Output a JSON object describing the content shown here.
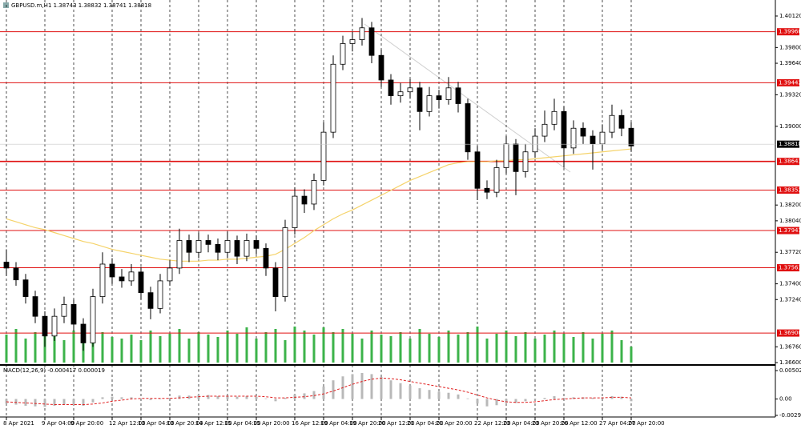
{
  "chart_data": {
    "type": "candlestick",
    "title": "GBPUSD.m,H1  1.38743 1.38832 1.38741 1.38818",
    "categories": [
      "8 Apr 2021",
      null,
      null,
      null,
      "9 Apr 04:00",
      null,
      null,
      "9 Apr 20:00",
      null,
      null,
      null,
      "12 Apr 12:00",
      null,
      null,
      "13 Apr 04:00",
      null,
      null,
      "13 Apr 20:00",
      null,
      null,
      "14 Apr 12:00",
      null,
      null,
      "15 Apr 04:00",
      null,
      null,
      "15 Apr 20:00",
      null,
      null,
      null,
      "16 Apr 12:00",
      null,
      null,
      "19 Apr 04:00",
      null,
      null,
      "19 Apr 20:00",
      null,
      null,
      "20 Apr 12:00",
      null,
      null,
      "21 Apr 04:00",
      null,
      null,
      "21 Apr 20:00",
      null,
      null,
      null,
      "22 Apr 12:00",
      null,
      null,
      "23 Apr 04:00",
      null,
      null,
      "23 Apr 20:00",
      null,
      null,
      "26 Apr 12:00",
      null,
      null,
      null,
      "27 Apr 04:00",
      null,
      null,
      "27 Apr 20:00"
    ],
    "candles": [
      [
        1.3762,
        1.3775,
        1.3748,
        1.3756
      ],
      [
        1.3756,
        1.3762,
        1.3738,
        1.3744
      ],
      [
        1.3744,
        1.375,
        1.372,
        1.3727
      ],
      [
        1.3727,
        1.3733,
        1.37,
        1.3707
      ],
      [
        1.3707,
        1.3712,
        1.3676,
        1.3687
      ],
      [
        1.3687,
        1.3715,
        1.3682,
        1.3707
      ],
      [
        1.3707,
        1.3727,
        1.37,
        1.3719
      ],
      [
        1.3719,
        1.3724,
        1.3692,
        1.3699
      ],
      [
        1.3699,
        1.3705,
        1.3672,
        1.368
      ],
      [
        1.368,
        1.3735,
        1.3676,
        1.3727
      ],
      [
        1.3727,
        1.3772,
        1.372,
        1.376
      ],
      [
        1.376,
        1.3766,
        1.374,
        1.3747
      ],
      [
        1.3747,
        1.3755,
        1.3736,
        1.3743
      ],
      [
        1.3743,
        1.376,
        1.3738,
        1.3752
      ],
      [
        1.3752,
        1.3757,
        1.3724,
        1.3731
      ],
      [
        1.3731,
        1.3737,
        1.3704,
        1.3715
      ],
      [
        1.3715,
        1.375,
        1.371,
        1.3743
      ],
      [
        1.3743,
        1.3764,
        1.3738,
        1.3756
      ],
      [
        1.3756,
        1.3796,
        1.375,
        1.3784
      ],
      [
        1.3784,
        1.379,
        1.3762,
        1.3772
      ],
      [
        1.3772,
        1.3792,
        1.3766,
        1.3784
      ],
      [
        1.3784,
        1.379,
        1.3772,
        1.378
      ],
      [
        1.378,
        1.3786,
        1.3764,
        1.3772
      ],
      [
        1.3772,
        1.3793,
        1.3766,
        1.3784
      ],
      [
        1.3784,
        1.3789,
        1.376,
        1.3768
      ],
      [
        1.3768,
        1.3791,
        1.3763,
        1.3784
      ],
      [
        1.3784,
        1.3789,
        1.377,
        1.3776
      ],
      [
        1.3776,
        1.3781,
        1.3748,
        1.3756
      ],
      [
        1.3756,
        1.3762,
        1.3712,
        1.3727
      ],
      [
        1.3727,
        1.3805,
        1.3722,
        1.3797
      ],
      [
        1.3797,
        1.3838,
        1.379,
        1.3829
      ],
      [
        1.3829,
        1.3836,
        1.3812,
        1.3821
      ],
      [
        1.3821,
        1.3852,
        1.3815,
        1.3845
      ],
      [
        1.3845,
        1.3904,
        1.384,
        1.3894
      ],
      [
        1.3894,
        1.3972,
        1.3888,
        1.3963
      ],
      [
        1.3963,
        1.3992,
        1.3957,
        1.3984
      ],
      [
        1.3984,
        1.3996,
        1.3976,
        1.3988
      ],
      [
        1.3988,
        1.401,
        1.3982,
        1.4
      ],
      [
        1.4,
        1.4006,
        1.3964,
        1.3972
      ],
      [
        1.3972,
        1.3978,
        1.394,
        1.3947
      ],
      [
        1.3947,
        1.3953,
        1.3922,
        1.3931
      ],
      [
        1.3931,
        1.3944,
        1.3924,
        1.3935
      ],
      [
        1.3935,
        1.3948,
        1.3928,
        1.3939
      ],
      [
        1.3939,
        1.3945,
        1.3896,
        1.3915
      ],
      [
        1.3915,
        1.394,
        1.391,
        1.3931
      ],
      [
        1.3931,
        1.3937,
        1.3918,
        1.3927
      ],
      [
        1.3927,
        1.395,
        1.3922,
        1.3939
      ],
      [
        1.3939,
        1.3945,
        1.3914,
        1.3923
      ],
      [
        1.3923,
        1.3928,
        1.3866,
        1.3874
      ],
      [
        1.3874,
        1.388,
        1.3825,
        1.3837
      ],
      [
        1.3837,
        1.3845,
        1.3826,
        1.3833
      ],
      [
        1.3833,
        1.3866,
        1.3828,
        1.3858
      ],
      [
        1.3858,
        1.389,
        1.3852,
        1.3882
      ],
      [
        1.3882,
        1.3887,
        1.383,
        1.3854
      ],
      [
        1.3854,
        1.3882,
        1.3848,
        1.3874
      ],
      [
        1.3874,
        1.3898,
        1.3868,
        1.389
      ],
      [
        1.389,
        1.3916,
        1.3884,
        1.3902
      ],
      [
        1.3902,
        1.3928,
        1.3896,
        1.3915
      ],
      [
        1.3915,
        1.392,
        1.3858,
        1.3878
      ],
      [
        1.3878,
        1.3906,
        1.3872,
        1.3898
      ],
      [
        1.3898,
        1.3904,
        1.3882,
        1.389
      ],
      [
        1.389,
        1.3896,
        1.3856,
        1.3882
      ],
      [
        1.3882,
        1.3902,
        1.3876,
        1.3894
      ],
      [
        1.3894,
        1.3922,
        1.3888,
        1.3911
      ],
      [
        1.3911,
        1.3917,
        1.389,
        1.3898
      ],
      [
        1.3898,
        1.3904,
        1.3874,
        1.388
      ]
    ],
    "ma": [
      1.3806,
      1.3803,
      1.38,
      1.3797,
      1.3795,
      1.3792,
      1.3789,
      1.3786,
      1.3783,
      1.3781,
      1.3778,
      1.3775,
      1.3773,
      1.3771,
      1.3769,
      1.3767,
      1.3765,
      1.3764,
      1.3763,
      1.3763,
      1.3763,
      1.3764,
      1.3764,
      1.3765,
      1.3765,
      1.3766,
      1.3767,
      1.3768,
      1.377,
      1.3775,
      1.3781,
      1.3787,
      1.3794,
      1.38,
      1.3806,
      1.3811,
      1.3815,
      1.382,
      1.3825,
      1.383,
      1.3835,
      1.384,
      1.3845,
      1.3849,
      1.3853,
      1.3857,
      1.3861,
      1.3863,
      1.3864,
      1.3864,
      1.3864,
      1.3865,
      1.3865,
      1.3866,
      1.3866,
      1.3867,
      1.3868,
      1.3869,
      1.387,
      1.3871,
      1.3872,
      1.3873,
      1.3874,
      1.3875,
      1.3876,
      1.3877
    ],
    "ma_color": "#f5d36a",
    "volume": [
      35,
      42,
      30,
      38,
      45,
      33,
      28,
      40,
      36,
      25,
      38,
      32,
      30,
      35,
      28,
      40,
      33,
      36,
      42,
      30,
      38,
      35,
      32,
      40,
      36,
      44,
      30,
      38,
      42,
      28,
      45,
      40,
      35,
      44,
      38,
      42,
      36,
      30,
      40,
      35,
      33,
      38,
      30,
      42,
      36,
      32,
      40,
      35,
      38,
      45,
      30,
      36,
      40,
      33,
      38,
      30,
      35,
      40,
      36,
      32,
      38,
      30,
      36,
      40,
      28,
      20
    ],
    "volume_color": "#3cb34a",
    "ylim": [
      1.366,
      1.4012
    ],
    "yticks": [
      {
        "value": 1.4012,
        "label": "1.40120"
      },
      {
        "value": 1.398,
        "label": "1.39800"
      },
      {
        "value": 1.3964,
        "label": "1.39640"
      },
      {
        "value": 1.3932,
        "label": "1.39320"
      },
      {
        "value": 1.39,
        "label": "1.39000"
      },
      {
        "value": 1.382,
        "label": "1.38200"
      },
      {
        "value": 1.3804,
        "label": "1.38040"
      },
      {
        "value": 1.3772,
        "label": "1.37720"
      },
      {
        "value": 1.374,
        "label": "1.37400"
      },
      {
        "value": 1.3724,
        "label": "1.37240"
      },
      {
        "value": 1.3676,
        "label": "1.36760"
      },
      {
        "value": 1.366,
        "label": "1.36600"
      }
    ],
    "levels": [
      {
        "value": 1.3996,
        "label": "1.39960"
      },
      {
        "value": 1.39442,
        "label": "1.39442"
      },
      {
        "value": 1.38643,
        "label": "1.38643"
      },
      {
        "value": 1.38352,
        "label": "1.38352"
      },
      {
        "value": 1.37941,
        "label": "1.37941"
      },
      {
        "value": 1.37563,
        "label": "1.37563"
      },
      {
        "value": 1.369,
        "label": "1.36900"
      }
    ],
    "level_color": "#e01010",
    "current_price": {
      "value": 1.38818,
      "label": "1.38818"
    },
    "grid": true,
    "macd": {
      "title": "MACD(12,26,9) -0.000417 0.000019",
      "hist": [
        -0.0008,
        -0.001,
        -0.0012,
        -0.0013,
        -0.0014,
        -0.0012,
        -0.001,
        -0.0011,
        -0.0012,
        -0.0006,
        0.0003,
        0.0004,
        0.0003,
        0.0003,
        0.0001,
        -0.0002,
        0,
        0.0002,
        0.0006,
        0.0006,
        0.0007,
        0.0007,
        0.0005,
        0.0006,
        0.0004,
        0.0005,
        0.0004,
        0.0001,
        -0.0004,
        0.0002,
        0.0008,
        0.001,
        0.0014,
        0.0022,
        0.0033,
        0.004,
        0.0044,
        0.0046,
        0.0044,
        0.0039,
        0.0033,
        0.0028,
        0.0024,
        0.0019,
        0.0016,
        0.0013,
        0.0011,
        0.0008,
        0.0001,
        -0.0008,
        -0.0013,
        -0.0011,
        -0.0007,
        -0.0007,
        -0.0004,
        -0.0001,
        0.0002,
        0.0005,
        0.0002,
        0.0003,
        0.0003,
        0.0002,
        0.0003,
        0.0005,
        0.0004,
        -0.0004
      ],
      "signal": [
        -0.0005,
        -0.0006,
        -0.0007,
        -0.0008,
        -0.0009,
        -0.001,
        -0.001,
        -0.001,
        -0.001,
        -0.0009,
        -0.0007,
        -0.0004,
        -0.0002,
        0,
        0.0001,
        0.0001,
        0.0001,
        0.0001,
        0.0002,
        0.0003,
        0.0004,
        0.0005,
        0.0005,
        0.0005,
        0.0005,
        0.0005,
        0.0005,
        0.0004,
        0.0002,
        0.0002,
        0.0003,
        0.0004,
        0.0006,
        0.0009,
        0.0014,
        0.002,
        0.0026,
        0.0031,
        0.0035,
        0.0037,
        0.0036,
        0.0034,
        0.0031,
        0.0028,
        0.0025,
        0.0022,
        0.0019,
        0.0016,
        0.0012,
        0.0007,
        0.0002,
        -0.0002,
        -0.0005,
        -0.0006,
        -0.0006,
        -0.0005,
        -0.0003,
        -0.0001,
        0,
        0.0001,
        0.0002,
        0.0002,
        0.0002,
        0.0003,
        0.0003,
        0.0002
      ],
      "hist_color": "#b8b8b8",
      "signal_color": "#e02020",
      "ylim": [
        -0.002904,
        0.005028
      ],
      "yticks": [
        {
          "value": 0.005028,
          "label": "0.005028"
        },
        {
          "value": 0,
          "label": "0.00"
        },
        {
          "value": -0.002904,
          "label": "-0.002904"
        }
      ]
    }
  }
}
